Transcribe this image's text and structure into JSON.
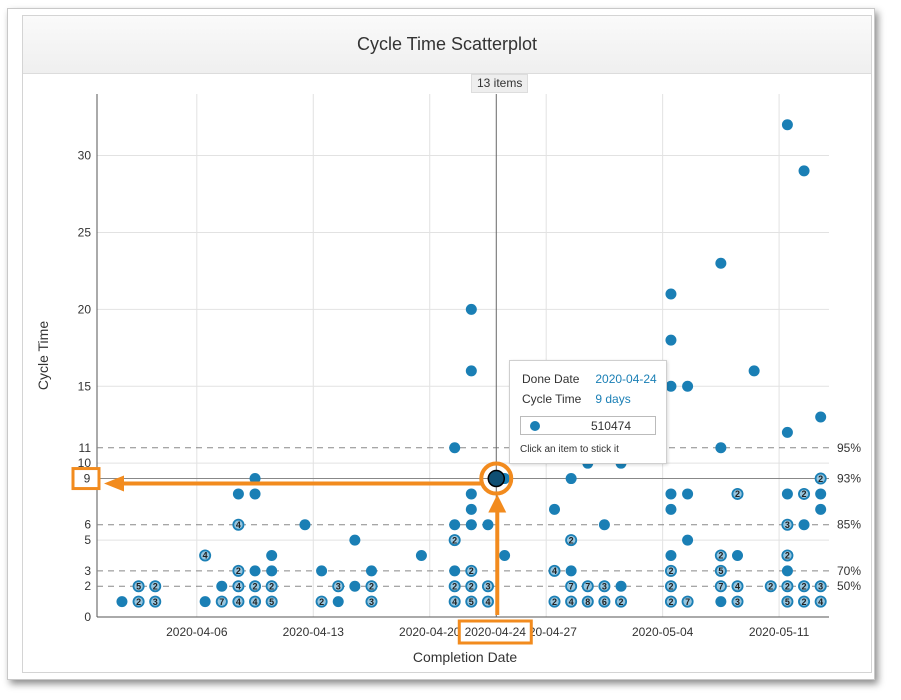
{
  "title": "Cycle Time Scatterplot",
  "count_label": "13 items",
  "colors": {
    "dot": "#1a7fb5",
    "badge": "#1a7fb5",
    "highlight": "#f28b1e",
    "grid": "#e2e2e2",
    "pct_line": "#888888"
  },
  "tooltip": {
    "done_date_key": "Done Date",
    "done_date_value": "2020-04-24",
    "cycle_time_key": "Cycle Time",
    "cycle_time_value": "9 days",
    "item_id": "510474",
    "hint": "Click an item to stick it"
  },
  "chart_data": {
    "type": "scatter",
    "title": "Cycle Time Scatterplot",
    "xlabel": "Completion Date",
    "ylabel": "Cycle Time",
    "x_range": [
      "2020-03-31",
      "2020-05-14"
    ],
    "ylim": [
      0,
      34
    ],
    "grid": true,
    "x_ticks": [
      "2020-04-06",
      "2020-04-13",
      "2020-04-20",
      "2020-04-27",
      "2020-05-04",
      "2020-05-11"
    ],
    "y_ticks": [
      0,
      5,
      10,
      15,
      20,
      25,
      30
    ],
    "percentile_lines": [
      {
        "label": "95%",
        "value": 11
      },
      {
        "label": "93%",
        "value": 9
      },
      {
        "label": "85%",
        "value": 6
      },
      {
        "label": "70%",
        "value": 3
      },
      {
        "label": "50%",
        "value": 2
      }
    ],
    "percentile_ticks": [
      11,
      9,
      6,
      3,
      2
    ],
    "highlight": {
      "date": "2020-04-24",
      "cycle_time": 9,
      "x_label": "2020-04-24",
      "y_label": "9"
    },
    "points": [
      {
        "x": "2020-04-01",
        "y": 1
      },
      {
        "x": "2020-04-02",
        "y": 1,
        "n": 2
      },
      {
        "x": "2020-04-02",
        "y": 2,
        "n": 5
      },
      {
        "x": "2020-04-03",
        "y": 1,
        "n": 3
      },
      {
        "x": "2020-04-03",
        "y": 2,
        "n": 2
      },
      {
        "x": "2020-04-06",
        "y": 1
      },
      {
        "x": "2020-04-06",
        "y": 4,
        "n": 4
      },
      {
        "x": "2020-04-07",
        "y": 1,
        "n": 7
      },
      {
        "x": "2020-04-07",
        "y": 2
      },
      {
        "x": "2020-04-08",
        "y": 1,
        "n": 4
      },
      {
        "x": "2020-04-08",
        "y": 2,
        "n": 4
      },
      {
        "x": "2020-04-08",
        "y": 3,
        "n": 2
      },
      {
        "x": "2020-04-08",
        "y": 6,
        "n": 4
      },
      {
        "x": "2020-04-08",
        "y": 8
      },
      {
        "x": "2020-04-09",
        "y": 1,
        "n": 4
      },
      {
        "x": "2020-04-09",
        "y": 2,
        "n": 2
      },
      {
        "x": "2020-04-09",
        "y": 3
      },
      {
        "x": "2020-04-09",
        "y": 8
      },
      {
        "x": "2020-04-09",
        "y": 9
      },
      {
        "x": "2020-04-10",
        "y": 1,
        "n": 5
      },
      {
        "x": "2020-04-10",
        "y": 2,
        "n": 2
      },
      {
        "x": "2020-04-10",
        "y": 3
      },
      {
        "x": "2020-04-10",
        "y": 4
      },
      {
        "x": "2020-04-12",
        "y": 6
      },
      {
        "x": "2020-04-13",
        "y": 1,
        "n": 2
      },
      {
        "x": "2020-04-13",
        "y": 3
      },
      {
        "x": "2020-04-14",
        "y": 1
      },
      {
        "x": "2020-04-14",
        "y": 2,
        "n": 3
      },
      {
        "x": "2020-04-15",
        "y": 2
      },
      {
        "x": "2020-04-15",
        "y": 5
      },
      {
        "x": "2020-04-16",
        "y": 1,
        "n": 3
      },
      {
        "x": "2020-04-16",
        "y": 2,
        "n": 2
      },
      {
        "x": "2020-04-16",
        "y": 3
      },
      {
        "x": "2020-04-19",
        "y": 4
      },
      {
        "x": "2020-04-21",
        "y": 1,
        "n": 4
      },
      {
        "x": "2020-04-21",
        "y": 2,
        "n": 2
      },
      {
        "x": "2020-04-21",
        "y": 3
      },
      {
        "x": "2020-04-21",
        "y": 5,
        "n": 2
      },
      {
        "x": "2020-04-21",
        "y": 6
      },
      {
        "x": "2020-04-21",
        "y": 11
      },
      {
        "x": "2020-04-22",
        "y": 1,
        "n": 5
      },
      {
        "x": "2020-04-22",
        "y": 2,
        "n": 2
      },
      {
        "x": "2020-04-22",
        "y": 3,
        "n": 2
      },
      {
        "x": "2020-04-22",
        "y": 6
      },
      {
        "x": "2020-04-22",
        "y": 7
      },
      {
        "x": "2020-04-22",
        "y": 8
      },
      {
        "x": "2020-04-22",
        "y": 16
      },
      {
        "x": "2020-04-22",
        "y": 20
      },
      {
        "x": "2020-04-23",
        "y": 1,
        "n": 4
      },
      {
        "x": "2020-04-23",
        "y": 2,
        "n": 3
      },
      {
        "x": "2020-04-23",
        "y": 6
      },
      {
        "x": "2020-04-24",
        "y": 4
      },
      {
        "x": "2020-04-24",
        "y": 9
      },
      {
        "x": "2020-04-27",
        "y": 1,
        "n": 2
      },
      {
        "x": "2020-04-27",
        "y": 3,
        "n": 4
      },
      {
        "x": "2020-04-27",
        "y": 7
      },
      {
        "x": "2020-04-28",
        "y": 1,
        "n": 4
      },
      {
        "x": "2020-04-28",
        "y": 2,
        "n": 7
      },
      {
        "x": "2020-04-28",
        "y": 3
      },
      {
        "x": "2020-04-28",
        "y": 5,
        "n": 2
      },
      {
        "x": "2020-04-28",
        "y": 9
      },
      {
        "x": "2020-04-29",
        "y": 1,
        "n": 8
      },
      {
        "x": "2020-04-29",
        "y": 2,
        "n": 7
      },
      {
        "x": "2020-04-29",
        "y": 10
      },
      {
        "x": "2020-04-30",
        "y": 1,
        "n": 6
      },
      {
        "x": "2020-04-30",
        "y": 2,
        "n": 3
      },
      {
        "x": "2020-04-30",
        "y": 6
      },
      {
        "x": "2020-05-01",
        "y": 1,
        "n": 2
      },
      {
        "x": "2020-05-01",
        "y": 2
      },
      {
        "x": "2020-05-01",
        "y": 10
      },
      {
        "x": "2020-05-04",
        "y": 1,
        "n": 2
      },
      {
        "x": "2020-05-04",
        "y": 2,
        "n": 2
      },
      {
        "x": "2020-05-04",
        "y": 3,
        "n": 2
      },
      {
        "x": "2020-05-04",
        "y": 4
      },
      {
        "x": "2020-05-04",
        "y": 7
      },
      {
        "x": "2020-05-04",
        "y": 8
      },
      {
        "x": "2020-05-04",
        "y": 15
      },
      {
        "x": "2020-05-04",
        "y": 18
      },
      {
        "x": "2020-05-04",
        "y": 21
      },
      {
        "x": "2020-05-05",
        "y": 1,
        "n": 7
      },
      {
        "x": "2020-05-05",
        "y": 5
      },
      {
        "x": "2020-05-05",
        "y": 8
      },
      {
        "x": "2020-05-05",
        "y": 15
      },
      {
        "x": "2020-05-07",
        "y": 1
      },
      {
        "x": "2020-05-07",
        "y": 2,
        "n": 7
      },
      {
        "x": "2020-05-07",
        "y": 3,
        "n": 5
      },
      {
        "x": "2020-05-07",
        "y": 4,
        "n": 2
      },
      {
        "x": "2020-05-07",
        "y": 11
      },
      {
        "x": "2020-05-07",
        "y": 23
      },
      {
        "x": "2020-05-08",
        "y": 1,
        "n": 3
      },
      {
        "x": "2020-05-08",
        "y": 2,
        "n": 4
      },
      {
        "x": "2020-05-08",
        "y": 4
      },
      {
        "x": "2020-05-08",
        "y": 8,
        "n": 2
      },
      {
        "x": "2020-05-09",
        "y": 16
      },
      {
        "x": "2020-05-10",
        "y": 2,
        "n": 2
      },
      {
        "x": "2020-05-11",
        "y": 1,
        "n": 5
      },
      {
        "x": "2020-05-11",
        "y": 2,
        "n": 2
      },
      {
        "x": "2020-05-11",
        "y": 3
      },
      {
        "x": "2020-05-11",
        "y": 4,
        "n": 2
      },
      {
        "x": "2020-05-11",
        "y": 6,
        "n": 3
      },
      {
        "x": "2020-05-11",
        "y": 8
      },
      {
        "x": "2020-05-11",
        "y": 12
      },
      {
        "x": "2020-05-11",
        "y": 32
      },
      {
        "x": "2020-05-12",
        "y": 1,
        "n": 2
      },
      {
        "x": "2020-05-12",
        "y": 2,
        "n": 2
      },
      {
        "x": "2020-05-12",
        "y": 6
      },
      {
        "x": "2020-05-12",
        "y": 8,
        "n": 2
      },
      {
        "x": "2020-05-12",
        "y": 29
      },
      {
        "x": "2020-05-13",
        "y": 1,
        "n": 4
      },
      {
        "x": "2020-05-13",
        "y": 2,
        "n": 3
      },
      {
        "x": "2020-05-13",
        "y": 7
      },
      {
        "x": "2020-05-13",
        "y": 8
      },
      {
        "x": "2020-05-13",
        "y": 9,
        "n": 2
      },
      {
        "x": "2020-05-13",
        "y": 13
      }
    ]
  }
}
